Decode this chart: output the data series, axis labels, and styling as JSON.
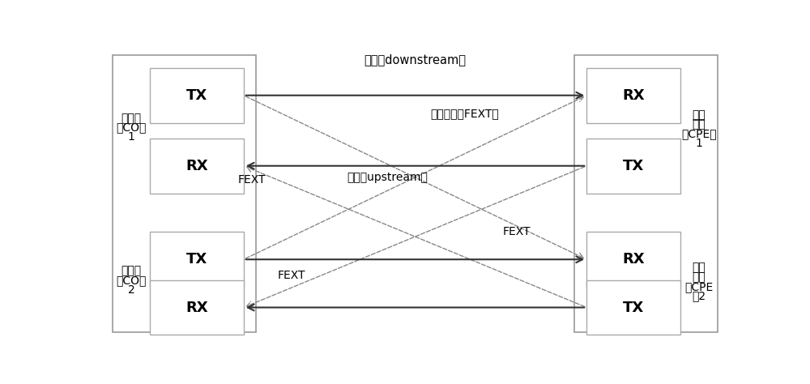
{
  "bg_color": "#ffffff",
  "co1_label": "中心局\n（CO）\n1",
  "co2_label": "中心局\n（CO）\n2",
  "cpe1_label": "用户\n前端\n（CPE）\n1",
  "cpe2_label": "用户\n前端\n（CPE\n）2",
  "downstream_label": "下行（downstream）",
  "upstream_label": "上行（upstream）",
  "fext_remote": "远端串扰（FEXT）",
  "fext": "FEXT",
  "tx_label": "TX",
  "rx_label": "RX",
  "box_edge": "#aaaaaa",
  "outer_edge": "#999999",
  "line_color": "#333333",
  "dash_color": "#888888"
}
